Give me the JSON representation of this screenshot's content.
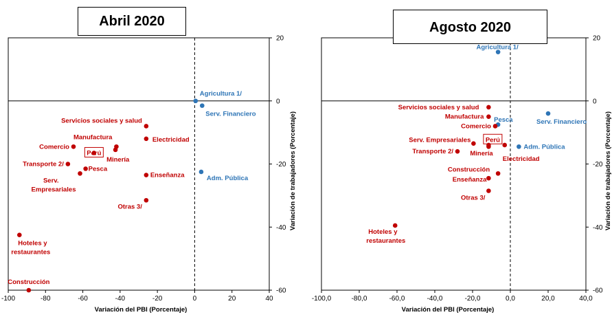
{
  "chart_data": [
    {
      "type": "scatter",
      "title": "Abril 2020",
      "xlabel": "Variación del PBI (Porcentaje)",
      "ylabel": "Variación de trabajadores (Porcentaje)",
      "xlim": [
        -100,
        40
      ],
      "ylim": [
        -60,
        20
      ],
      "xticks": [
        "-100",
        "-80",
        "-60",
        "-40",
        "-20",
        "0",
        "20",
        "40"
      ],
      "yticks": [
        "-60",
        "-40",
        "-20",
        "0",
        "20"
      ],
      "points": [
        {
          "label": "Agricultura 1/",
          "x": 0.5,
          "y": 0.0,
          "color": "#2e75b6"
        },
        {
          "label": "Serv. Financiero",
          "x": 4.0,
          "y": -1.5,
          "color": "#2e75b6"
        },
        {
          "label": "Adm. Pública",
          "x": 3.5,
          "y": -22.5,
          "color": "#2e75b6"
        },
        {
          "label": "Servicios sociales y salud",
          "x": -26.0,
          "y": -8.0,
          "color": "#c00000"
        },
        {
          "label": "Manufactura",
          "x": -42.0,
          "y": -14.5,
          "color": "#c00000"
        },
        {
          "label": "Electricidad",
          "x": -26.0,
          "y": -12.0,
          "color": "#c00000"
        },
        {
          "label": "Comercio",
          "x": -65.0,
          "y": -14.5,
          "color": "#c00000"
        },
        {
          "label": "Perú",
          "x": -54.0,
          "y": -16.5,
          "color": "#c00000"
        },
        {
          "label": "Minería",
          "x": -42.5,
          "y": -15.5,
          "color": "#c00000"
        },
        {
          "label": "Transporte 2/",
          "x": -68.0,
          "y": -20.0,
          "color": "#c00000"
        },
        {
          "label": "Pesca",
          "x": -58.5,
          "y": -21.5,
          "color": "#c00000"
        },
        {
          "label": "Serv. Empresariales",
          "x": -61.5,
          "y": -23.0,
          "color": "#c00000"
        },
        {
          "label": "Enseñanza",
          "x": -26.0,
          "y": -23.5,
          "color": "#c00000"
        },
        {
          "label": "Otras 3/",
          "x": -26.0,
          "y": -31.5,
          "color": "#c00000"
        },
        {
          "label": "Hoteles y restaurantes",
          "x": -94.0,
          "y": -42.5,
          "color": "#c00000"
        },
        {
          "label": "Construcción",
          "x": -89.0,
          "y": -60.0,
          "color": "#c00000"
        }
      ]
    },
    {
      "type": "scatter",
      "title": "Agosto 2020",
      "xlabel": "Variación del PBI (Porcentaje)",
      "ylabel": "Variación de trabajadores (Porcentaje)",
      "xlim": [
        -100,
        40
      ],
      "ylim": [
        -60,
        20
      ],
      "xticks": [
        "-100,0",
        "-80,0",
        "-60,0",
        "-40,0",
        "-20,0",
        "0,0",
        "20,0",
        "40,0"
      ],
      "yticks": [
        "-60",
        "-40",
        "-20",
        "0",
        "20"
      ],
      "points": [
        {
          "label": "Agricultura 1/",
          "x": -6.5,
          "y": 15.5,
          "color": "#2e75b6"
        },
        {
          "label": "Pesca",
          "x": -6.5,
          "y": -7.5,
          "color": "#2e75b6"
        },
        {
          "label": "Serv. Financiero",
          "x": 20.0,
          "y": -4.0,
          "color": "#2e75b6"
        },
        {
          "label": "Adm. Pública",
          "x": 4.5,
          "y": -14.5,
          "color": "#2e75b6"
        },
        {
          "label": "Servicios sociales y salud",
          "x": -11.5,
          "y": -2.0,
          "color": "#c00000"
        },
        {
          "label": "Manufactura",
          "x": -11.5,
          "y": -5.0,
          "color": "#c00000"
        },
        {
          "label": "Comercio",
          "x": -8.0,
          "y": -8.0,
          "color": "#c00000"
        },
        {
          "label": "Perú",
          "x": -11.5,
          "y": -14.5,
          "color": "#c00000"
        },
        {
          "label": "Serv. Empresariales",
          "x": -19.5,
          "y": -13.5,
          "color": "#c00000"
        },
        {
          "label": "Transporte 2/",
          "x": -28.0,
          "y": -16.0,
          "color": "#c00000"
        },
        {
          "label": "Minería",
          "x": -11.5,
          "y": -14.0,
          "color": "#c00000"
        },
        {
          "label": "Electricidad",
          "x": -3.0,
          "y": -14.0,
          "color": "#c00000"
        },
        {
          "label": "Construcción",
          "x": -6.5,
          "y": -23.0,
          "color": "#c00000"
        },
        {
          "label": "Enseñanza",
          "x": -11.5,
          "y": -24.5,
          "color": "#c00000"
        },
        {
          "label": "Otras 3/",
          "x": -11.5,
          "y": -28.5,
          "color": "#c00000"
        },
        {
          "label": "Hoteles y restaurantes",
          "x": -61.0,
          "y": -39.5,
          "color": "#c00000"
        }
      ]
    }
  ]
}
